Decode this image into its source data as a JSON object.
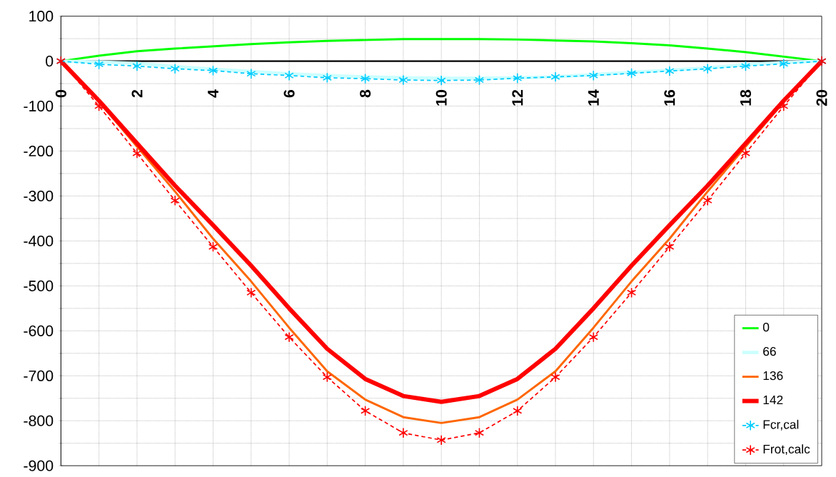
{
  "chart_data": {
    "type": "line",
    "x": [
      0,
      1,
      2,
      3,
      4,
      5,
      6,
      7,
      8,
      9,
      10,
      11,
      12,
      13,
      14,
      15,
      16,
      17,
      18,
      19,
      20
    ],
    "xlim": [
      0,
      20
    ],
    "ylim": [
      -900,
      100
    ],
    "xticks": [
      0,
      {
        "value": 1,
        "label": null
      },
      2,
      {
        "value": 3,
        "label": null
      },
      4,
      {
        "value": 5,
        "label": null
      },
      6,
      {
        "value": 7,
        "label": null
      },
      8,
      {
        "value": 9,
        "label": null
      },
      10,
      {
        "value": 11,
        "label": null
      },
      12,
      {
        "value": 13,
        "label": null
      },
      14,
      {
        "value": 15,
        "label": null
      },
      16,
      {
        "value": 17,
        "label": null
      },
      18,
      {
        "value": 19,
        "label": null
      },
      20
    ],
    "yticks": [
      -900,
      {
        "value": -850,
        "label": null
      },
      -800,
      {
        "value": -750,
        "label": null
      },
      -700,
      {
        "value": -650,
        "label": null
      },
      -600,
      {
        "value": -550,
        "label": null
      },
      -500,
      {
        "value": -450,
        "label": null
      },
      -400,
      {
        "value": -350,
        "label": null
      },
      -300,
      {
        "value": -250,
        "label": null
      },
      -200,
      {
        "value": -150,
        "label": null
      },
      -100,
      {
        "value": -50,
        "label": null
      },
      0,
      {
        "value": 50,
        "label": null
      },
      100
    ],
    "grid": true,
    "legend": "bottom right",
    "series": [
      {
        "name": "0",
        "color": "#00ff00",
        "marker": "none",
        "line_style": "solid",
        "values": [
          0,
          12,
          22,
          28,
          33,
          38,
          42,
          45,
          47,
          49,
          49,
          49,
          48,
          46,
          44,
          40,
          35,
          28,
          20,
          10,
          0
        ]
      },
      {
        "name": "66",
        "color": "#ccffff",
        "marker": "none",
        "line_style": "solid",
        "values": [
          0,
          -2,
          -5,
          -12,
          -18,
          -23,
          -28,
          -32,
          -35,
          -37,
          -38,
          -38,
          -37,
          -35,
          -30,
          -25,
          -20,
          -15,
          -8,
          -3,
          0
        ]
      },
      {
        "name": "136",
        "color": "#ff6600",
        "marker": "none",
        "line_style": "solid",
        "values": [
          0,
          -90,
          -190,
          -290,
          -395,
          -490,
          -593,
          -690,
          -753,
          -792,
          -805,
          -792,
          -753,
          -690,
          -593,
          -490,
          -395,
          -290,
          -190,
          -90,
          0
        ]
      },
      {
        "name": "142",
        "color": "#ff0000",
        "marker": "none",
        "line_style": "solid",
        "values": [
          0,
          -88,
          -183,
          -277,
          -365,
          -455,
          -550,
          -640,
          -707,
          -745,
          -758,
          -745,
          -707,
          -640,
          -550,
          -455,
          -365,
          -277,
          -183,
          -88,
          0
        ]
      },
      {
        "name": "Fcr,cal",
        "color": "#00ccff",
        "marker": "cross",
        "line_style": "dashed",
        "values": [
          0,
          -7,
          -11,
          -17,
          -21,
          -28,
          -32,
          -37,
          -39,
          -42,
          -43,
          -42,
          -38,
          -35,
          -32,
          -27,
          -22,
          -17,
          -11,
          -6,
          0
        ]
      },
      {
        "name": "Frot,calc",
        "color": "#ff0000",
        "marker": "cross",
        "line_style": "dashed",
        "values": [
          0,
          -100,
          -205,
          -310,
          -413,
          -515,
          -614,
          -703,
          -778,
          -827,
          -843,
          -827,
          -778,
          -703,
          -614,
          -515,
          -413,
          -310,
          -205,
          -100,
          0
        ]
      }
    ]
  }
}
